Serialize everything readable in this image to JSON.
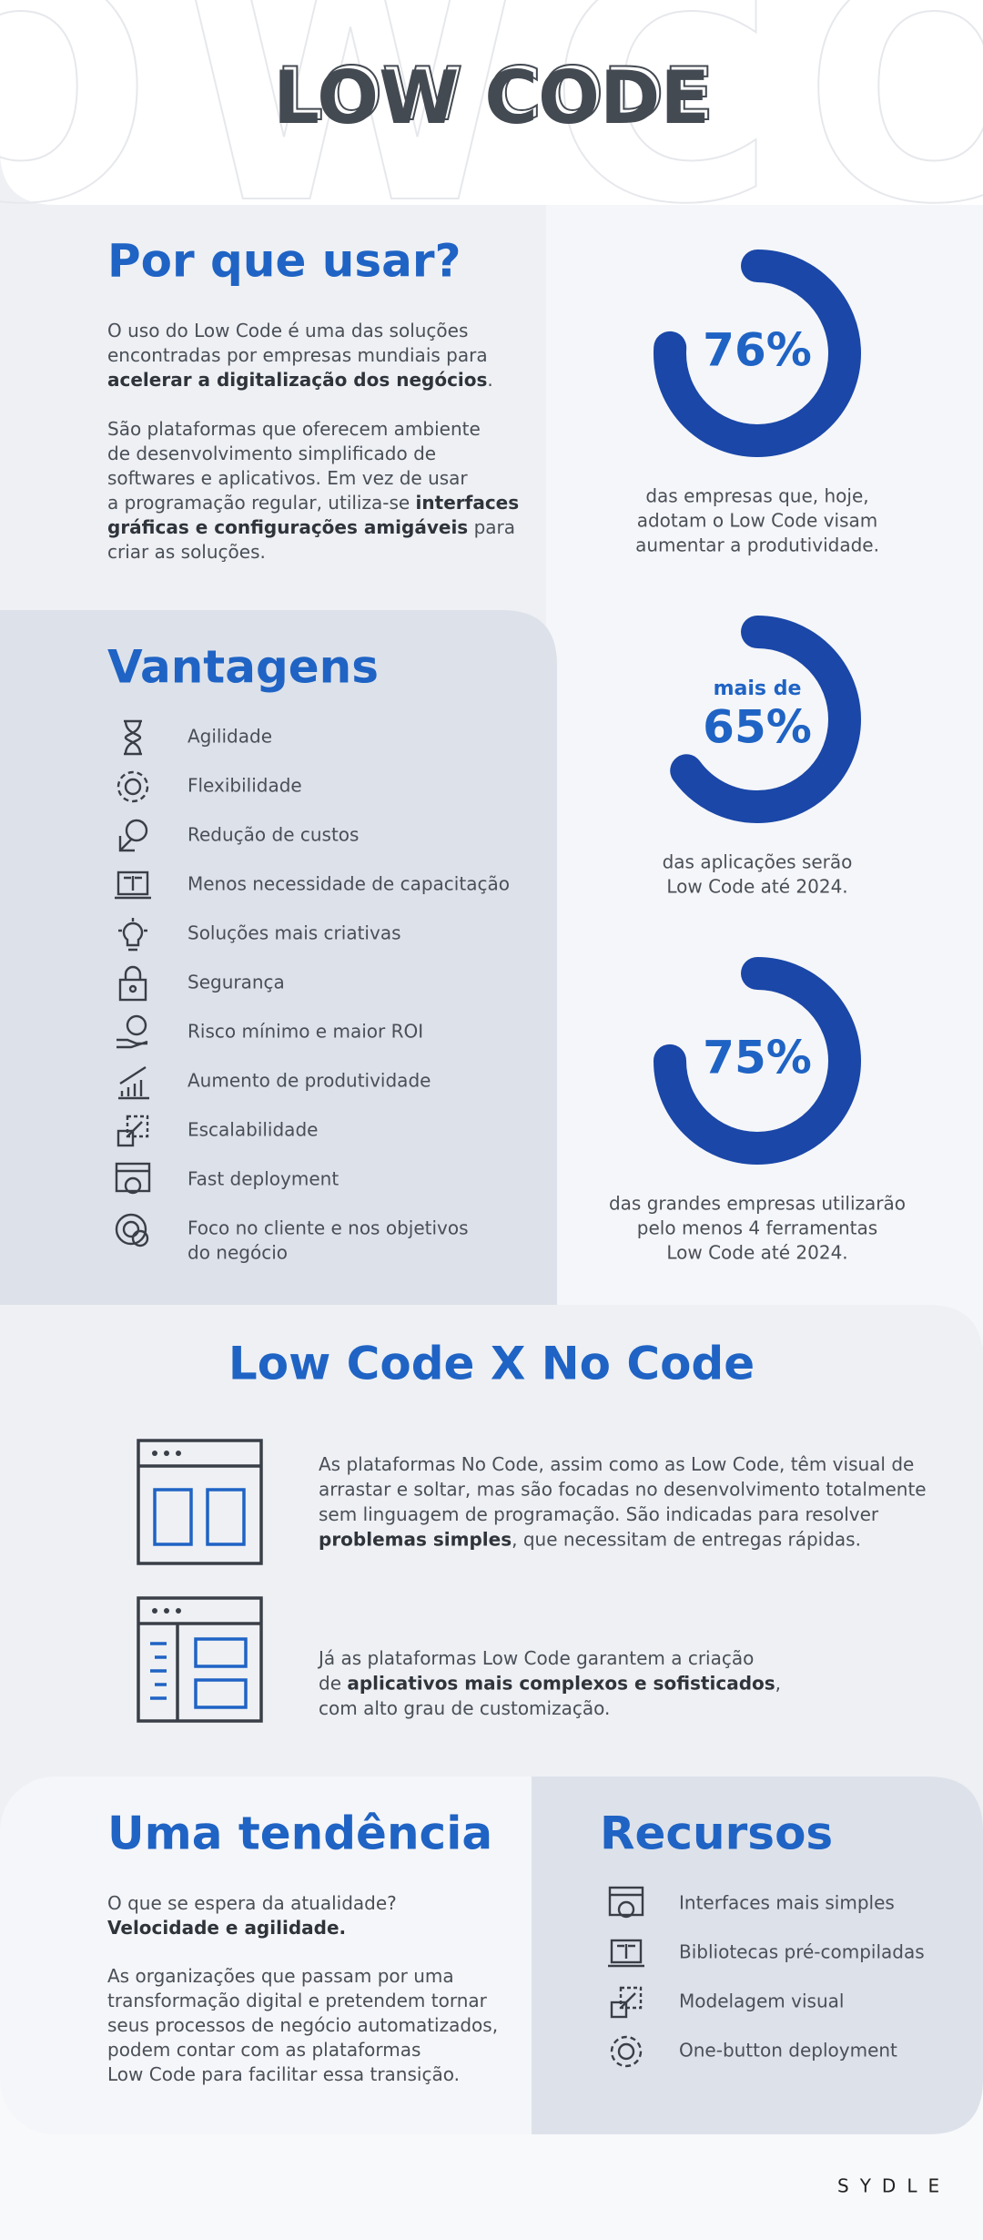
{
  "header": {
    "title": "LOW CODE",
    "background_text": "OWCO"
  },
  "intro": {
    "title": "Por que usar?",
    "paragraphs": [
      [
        [
          {
            "text": "O uso do Low Code é uma das soluções"
          }
        ],
        [
          {
            "text": "encontradas por empresas mundiais para"
          }
        ],
        [
          {
            "text": "acelerar a digitalização dos negócios",
            "bold": true
          },
          {
            "text": "."
          }
        ]
      ],
      [
        [
          {
            "text": "São plataformas que oferecem ambiente"
          }
        ],
        [
          {
            "text": "de desenvolvimento simplificado de"
          }
        ],
        [
          {
            "text": "softwares e aplicativos. Em vez de usar"
          }
        ],
        [
          {
            "text": "a programação regular, utiliza-se "
          },
          {
            "text": "interfaces",
            "bold": true
          }
        ],
        [
          {
            "text": "gráficas e configurações amigáveis",
            "bold": true
          },
          {
            "text": " para"
          }
        ],
        [
          {
            "text": "criar as soluções."
          }
        ]
      ]
    ]
  },
  "stats": [
    {
      "value": 76,
      "value_label": "76%",
      "caption": [
        "das empresas que, hoje,",
        "adotam o Low Code visam",
        "aumentar a produtividade."
      ]
    },
    {
      "value": 65,
      "prefix": "mais de",
      "value_label": "65%",
      "caption": [
        "das aplicações serão",
        "Low Code até 2024."
      ]
    },
    {
      "value": 75,
      "value_label": "75%",
      "caption": [
        "das grandes empresas utilizarão",
        "pelo menos 4 ferramentas",
        "Low Code até 2024."
      ]
    }
  ],
  "advantages": {
    "title": "Vantagens",
    "items": [
      [
        "Agilidade"
      ],
      [
        "Flexibilidade"
      ],
      [
        "Redução de custos"
      ],
      [
        "Menos necessidade de capacitação"
      ],
      [
        "Soluções mais criativas"
      ],
      [
        "Segurança"
      ],
      [
        "Risco mínimo e maior ROI"
      ],
      [
        "Aumento de produtividade"
      ],
      [
        "Escalabilidade"
      ],
      [
        "Fast deployment"
      ],
      [
        "Foco no cliente e nos objetivos",
        "do negócio"
      ]
    ]
  },
  "comparison": {
    "title": "Low Code  X  No Code",
    "blocks": [
      [
        [
          {
            "text": "As plataformas No Code, assim como as Low Code, têm visual de"
          }
        ],
        [
          {
            "text": "arrastar e soltar, mas são focadas no desenvolvimento totalmente"
          }
        ],
        [
          {
            "text": "sem linguagem de programação. São indicadas para resolver"
          }
        ],
        [
          {
            "text": "problemas simples",
            "bold": true
          },
          {
            "text": ", que necessitam de entregas rápidas."
          }
        ]
      ],
      [
        [
          {
            "text": "Já as plataformas Low Code garantem a criação"
          }
        ],
        [
          {
            "text": "de "
          },
          {
            "text": "aplicativos mais complexos e sofisticados",
            "bold": true
          },
          {
            "text": ","
          }
        ],
        [
          {
            "text": "com alto grau de customização."
          }
        ]
      ]
    ]
  },
  "trend": {
    "title": "Uma tendência",
    "paragraphs": [
      [
        [
          {
            "text": "O que se espera da atualidade?"
          }
        ],
        [
          {
            "text": "Velocidade e agilidade.",
            "bold": true
          }
        ]
      ],
      [
        [
          {
            "text": "As organizações que passam por uma"
          }
        ],
        [
          {
            "text": "transformação digital e pretendem tornar"
          }
        ],
        [
          {
            "text": "seus processos de negócio automatizados,"
          }
        ],
        [
          {
            "text": "podem contar com as plataformas"
          }
        ],
        [
          {
            "text": "Low Code para facilitar essa transição."
          }
        ]
      ]
    ]
  },
  "resources": {
    "title": "Recursos",
    "items": [
      "Interfaces mais simples",
      "Bibliotecas pré-compiladas",
      "Modelagem visual",
      "One-button deployment"
    ]
  },
  "footer": {
    "logo": "SYDLE"
  }
}
